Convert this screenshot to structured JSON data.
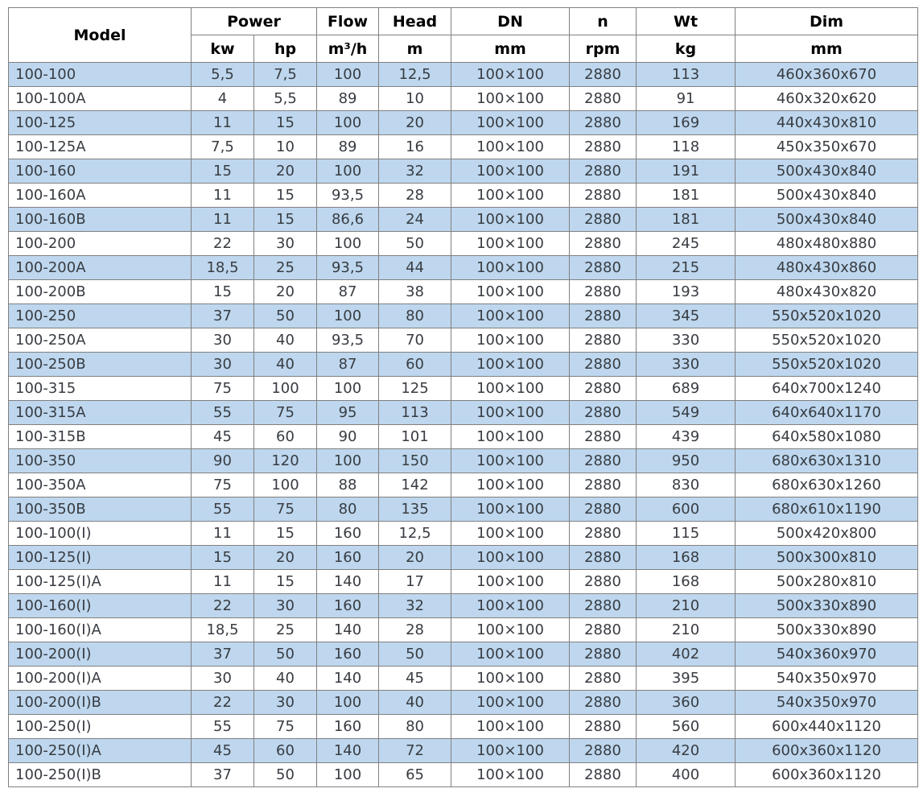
{
  "colors": {
    "stripe_blue": "#bed7ee",
    "border_gray": "#808080",
    "header_text": "#000000",
    "body_text": "#383c42"
  },
  "table": {
    "header": {
      "model": "Model",
      "power": "Power",
      "kw": "kw",
      "hp": "hp",
      "flow": "Flow",
      "flow_unit": "m³/h",
      "head": "Head",
      "head_unit": "m",
      "dn": "DN",
      "dn_unit": "mm",
      "n": "n",
      "n_unit": "rpm",
      "wt": "Wt",
      "wt_unit": "kg",
      "dim": "Dim",
      "dim_unit": "mm"
    },
    "column_ids": [
      "model",
      "power_kw",
      "power_hp",
      "flow",
      "head",
      "dn",
      "n",
      "wt",
      "dim"
    ],
    "rows": [
      [
        "100-100",
        "5,5",
        "7,5",
        "100",
        "12,5",
        "100×100",
        "2880",
        "113",
        "460x360x670"
      ],
      [
        "100-100A",
        "4",
        "5,5",
        "89",
        "10",
        "100×100",
        "2880",
        "91",
        "460x320x620"
      ],
      [
        "100-125",
        "11",
        "15",
        "100",
        "20",
        "100×100",
        "2880",
        "169",
        "440x430x810"
      ],
      [
        "100-125A",
        "7,5",
        "10",
        "89",
        "16",
        "100×100",
        "2880",
        "118",
        "450x350x670"
      ],
      [
        "100-160",
        "15",
        "20",
        "100",
        "32",
        "100×100",
        "2880",
        "191",
        "500x430x840"
      ],
      [
        "100-160A",
        "11",
        "15",
        "93,5",
        "28",
        "100×100",
        "2880",
        "181",
        "500x430x840"
      ],
      [
        "100-160B",
        "11",
        "15",
        "86,6",
        "24",
        "100×100",
        "2880",
        "181",
        "500x430x840"
      ],
      [
        "100-200",
        "22",
        "30",
        "100",
        "50",
        "100×100",
        "2880",
        "245",
        "480x480x880"
      ],
      [
        "100-200A",
        "18,5",
        "25",
        "93,5",
        "44",
        "100×100",
        "2880",
        "215",
        "480x430x860"
      ],
      [
        "100-200B",
        "15",
        "20",
        "87",
        "38",
        "100×100",
        "2880",
        "193",
        "480x430x820"
      ],
      [
        "100-250",
        "37",
        "50",
        "100",
        "80",
        "100×100",
        "2880",
        "345",
        "550x520x1020"
      ],
      [
        "100-250A",
        "30",
        "40",
        "93,5",
        "70",
        "100×100",
        "2880",
        "330",
        "550x520x1020"
      ],
      [
        "100-250B",
        "30",
        "40",
        "87",
        "60",
        "100×100",
        "2880",
        "330",
        "550x520x1020"
      ],
      [
        "100-315",
        "75",
        "100",
        "100",
        "125",
        "100×100",
        "2880",
        "689",
        "640x700x1240"
      ],
      [
        "100-315A",
        "55",
        "75",
        "95",
        "113",
        "100×100",
        "2880",
        "549",
        "640x640x1170"
      ],
      [
        "100-315B",
        "45",
        "60",
        "90",
        "101",
        "100×100",
        "2880",
        "439",
        "640x580x1080"
      ],
      [
        "100-350",
        "90",
        "120",
        "100",
        "150",
        "100×100",
        "2880",
        "950",
        "680x630x1310"
      ],
      [
        "100-350A",
        "75",
        "100",
        "88",
        "142",
        "100×100",
        "2880",
        "830",
        "680x630x1260"
      ],
      [
        "100-350B",
        "55",
        "75",
        "80",
        "135",
        "100×100",
        "2880",
        "600",
        "680x610x1190"
      ],
      [
        "100-100(I)",
        "11",
        "15",
        "160",
        "12,5",
        "100×100",
        "2880",
        "115",
        "500x420x800"
      ],
      [
        "100-125(I)",
        "15",
        "20",
        "160",
        "20",
        "100×100",
        "2880",
        "168",
        "500x300x810"
      ],
      [
        "100-125(I)A",
        "11",
        "15",
        "140",
        "17",
        "100×100",
        "2880",
        "168",
        "500x280x810"
      ],
      [
        "100-160(I)",
        "22",
        "30",
        "160",
        "32",
        "100×100",
        "2880",
        "210",
        "500x330x890"
      ],
      [
        "100-160(I)A",
        "18,5",
        "25",
        "140",
        "28",
        "100×100",
        "2880",
        "210",
        "500x330x890"
      ],
      [
        "100-200(I)",
        "37",
        "50",
        "160",
        "50",
        "100×100",
        "2880",
        "402",
        "540x360x970"
      ],
      [
        "100-200(I)A",
        "30",
        "40",
        "140",
        "45",
        "100×100",
        "2880",
        "395",
        "540x350x970"
      ],
      [
        "100-200(I)B",
        "22",
        "30",
        "100",
        "40",
        "100×100",
        "2880",
        "360",
        "540x350x970"
      ],
      [
        "100-250(I)",
        "55",
        "75",
        "160",
        "80",
        "100×100",
        "2880",
        "560",
        "600x440x1120"
      ],
      [
        "100-250(I)A",
        "45",
        "60",
        "140",
        "72",
        "100×100",
        "2880",
        "420",
        "600x360x1120"
      ],
      [
        "100-250(I)B",
        "37",
        "50",
        "100",
        "65",
        "100×100",
        "2880",
        "400",
        "600x360x1120"
      ]
    ]
  }
}
